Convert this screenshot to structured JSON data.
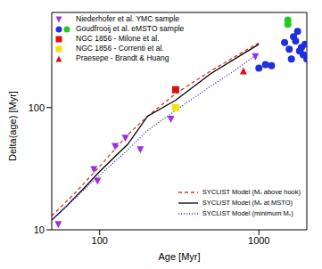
{
  "chart_data": {
    "type": "scatter",
    "x_label": "Age [Myr]",
    "y_label": "Delta(age) [Myr]",
    "log": true,
    "grid": false,
    "legend": "upper left",
    "xlim": [
      50,
      2000
    ],
    "xticks": [
      100,
      1000
    ],
    "ylim": [
      10,
      600
    ],
    "yticks": [
      10,
      100
    ],
    "series": [
      {
        "name": "Niederhofer et al. YMC sample",
        "type": "scatter",
        "marker": "triangle_down",
        "color": "#9b30e0",
        "x": [
          55,
          92,
          97,
          125,
          145,
          180,
          280,
          950
        ],
        "values": [
          11,
          31,
          25,
          48,
          56,
          45,
          80,
          260
        ]
      },
      {
        "name": "Goudfrooij et al. eMSTO sample",
        "type": "scatter",
        "marker": "circle",
        "color": "#1f2fe0",
        "x": [
          1000,
          1100,
          1200,
          1450,
          1550,
          1600,
          1650,
          1700,
          1750,
          1800,
          1900,
          1950,
          1850,
          2000
        ],
        "values": [
          210,
          225,
          220,
          340,
          300,
          250,
          380,
          350,
          420,
          290,
          270,
          330,
          310,
          250
        ]
      },
      {
        "name": null,
        "type": "scatter",
        "marker": "circle",
        "color": "#22cc22",
        "x": [
          1520,
          1520
        ],
        "values": [
          520,
          480
        ]
      },
      {
        "name": "NGC 1856 - Milone et al.",
        "type": "scatter",
        "marker": "square",
        "color": "#e01010",
        "x": [
          300
        ],
        "values": [
          140
        ]
      },
      {
        "name": "NGC 1856 - Correnti et al.",
        "type": "scatter",
        "marker": "square",
        "color": "#f5e10a",
        "x": [
          300
        ],
        "values": [
          100
        ]
      },
      {
        "name": "Praesepe - Brandt & Huang",
        "type": "scatter",
        "marker": "triangle",
        "color": "#e01010",
        "x": [
          800
        ],
        "values": [
          200
        ]
      },
      {
        "name": "SYCLIST Model (Mᵥ above hook)",
        "type": "line",
        "line_style": "dashed",
        "color": "#e03020",
        "x": [
          50,
          70,
          100,
          150,
          200,
          300,
          500,
          1000
        ],
        "values": [
          13,
          20,
          33,
          60,
          85,
          130,
          200,
          340
        ]
      },
      {
        "name": "SYCLIST Model (Mᵥ at MSTO)",
        "type": "line",
        "line_style": "solid",
        "color": "#000000",
        "x": [
          50,
          60,
          80,
          100,
          150,
          200,
          300,
          500,
          1000
        ],
        "values": [
          12,
          15,
          22,
          30,
          50,
          85,
          115,
          190,
          330
        ]
      },
      {
        "name": "SYCLIST Model (minimum Mᵥ)",
        "type": "line",
        "line_style": "dotted",
        "color": "#2030e0",
        "x": [
          50,
          100,
          150,
          200,
          300,
          500,
          700,
          1000
        ],
        "values": [
          12,
          28,
          45,
          65,
          95,
          150,
          200,
          280
        ]
      }
    ]
  }
}
